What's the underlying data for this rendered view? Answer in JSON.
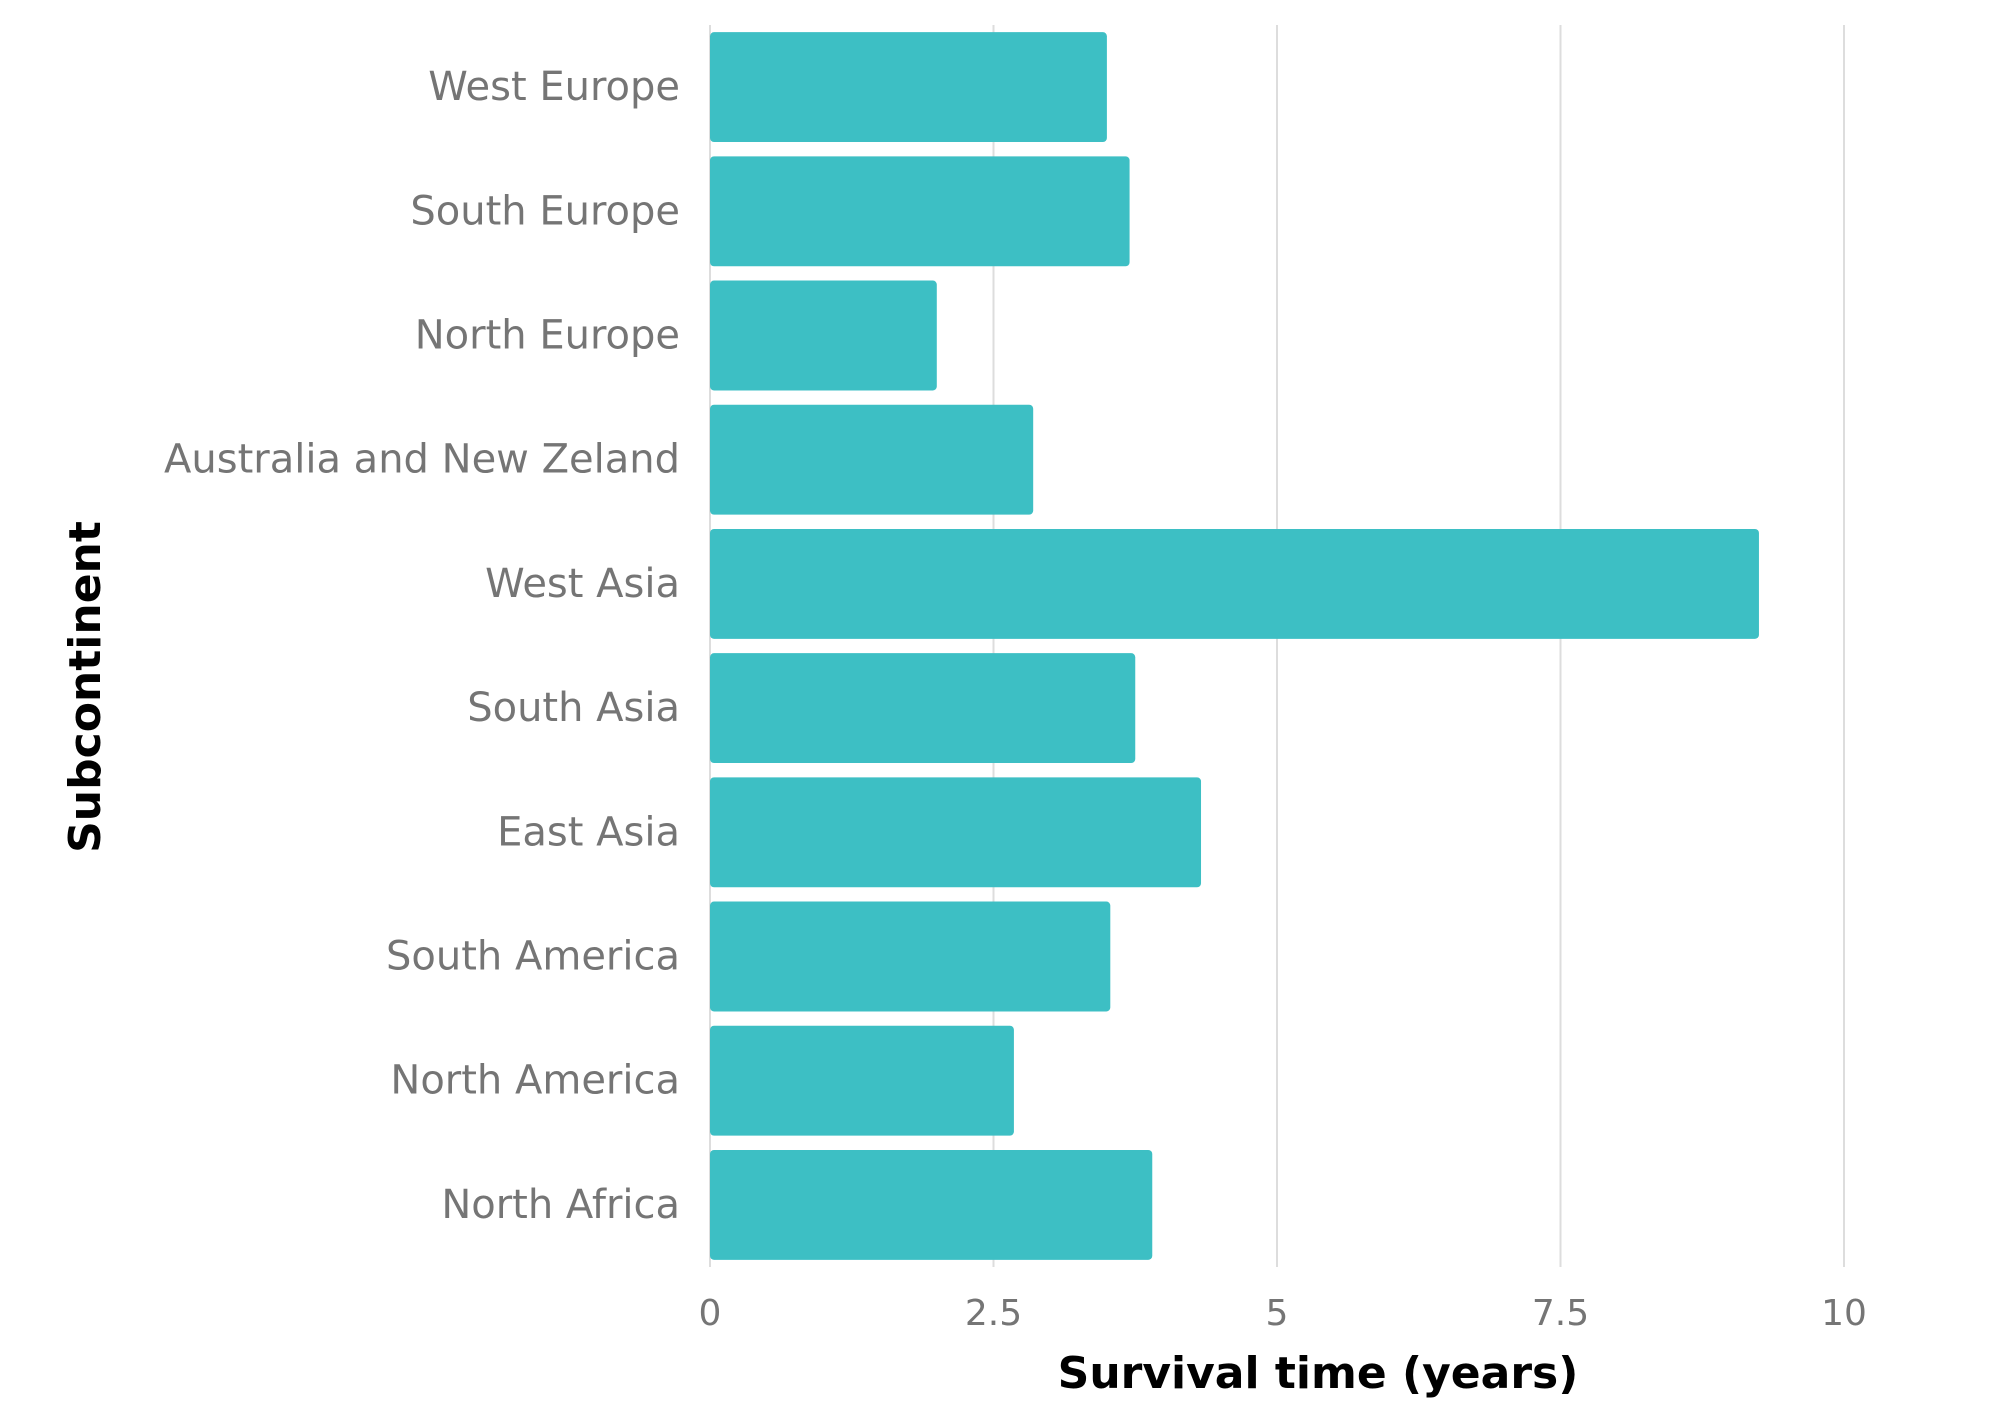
{
  "chart_data": {
    "type": "bar",
    "orientation": "horizontal",
    "categories": [
      "West Europe",
      "South Europe",
      "North Europe",
      "Australia and New Zeland",
      "West Asia",
      "South Asia",
      "East Asia",
      "South America",
      "North America",
      "North Africa"
    ],
    "values": [
      3.5,
      3.7,
      2.0,
      2.85,
      9.25,
      3.75,
      4.33,
      3.53,
      2.68,
      3.9
    ],
    "xlabel": "Survival time (years)",
    "ylabel": "Subcontinent",
    "xlim": [
      0,
      10
    ],
    "xticks": [
      0,
      2.5,
      5,
      7.5,
      10
    ],
    "xtick_labels": [
      "0",
      "2.5",
      "5",
      "7.5",
      "10"
    ],
    "grid": "vertical",
    "legend": "none",
    "colors": {
      "bar": "#3DBFC4",
      "grid": "#DDDDDD",
      "label": "#757575",
      "title": "#000000"
    }
  }
}
